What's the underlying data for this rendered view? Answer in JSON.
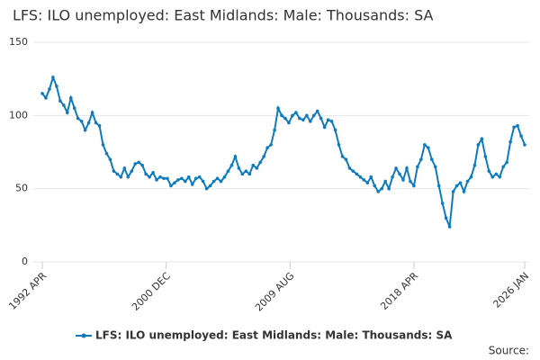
{
  "chart_data": {
    "type": "line",
    "title": "LFS: ILO unemployed: East Midlands: Male: Thousands: SA",
    "source_label": "Source:",
    "x": [
      1992.25,
      1992.5,
      1992.75,
      1993,
      1993.25,
      1993.5,
      1993.75,
      1994,
      1994.25,
      1994.5,
      1994.75,
      1995,
      1995.25,
      1995.5,
      1995.75,
      1996,
      1996.25,
      1996.5,
      1996.75,
      1997,
      1997.25,
      1997.5,
      1997.75,
      1998,
      1998.25,
      1998.5,
      1998.75,
      1999,
      1999.25,
      1999.5,
      1999.75,
      2000,
      2000.25,
      2000.5,
      2000.75,
      2001,
      2001.25,
      2001.5,
      2001.75,
      2002,
      2002.25,
      2002.5,
      2002.75,
      2003,
      2003.25,
      2003.5,
      2003.75,
      2004,
      2004.25,
      2004.5,
      2004.75,
      2005,
      2005.25,
      2005.5,
      2005.75,
      2006,
      2006.25,
      2006.5,
      2006.75,
      2007,
      2007.25,
      2007.5,
      2007.75,
      2008,
      2008.25,
      2008.5,
      2008.75,
      2009,
      2009.25,
      2009.5,
      2009.75,
      2010,
      2010.25,
      2010.5,
      2010.75,
      2011,
      2011.25,
      2011.5,
      2011.75,
      2012,
      2012.25,
      2012.5,
      2012.75,
      2013,
      2013.25,
      2013.5,
      2013.75,
      2014,
      2014.25,
      2014.5,
      2014.75,
      2015,
      2015.25,
      2015.5,
      2015.75,
      2016,
      2016.25,
      2016.5,
      2016.75,
      2017,
      2017.25,
      2017.5,
      2017.75,
      2018,
      2018.25,
      2018.5,
      2018.75,
      2019,
      2019.25,
      2019.5,
      2019.75,
      2020,
      2020.25,
      2020.5,
      2020.75,
      2021,
      2021.25,
      2021.5,
      2021.75,
      2022,
      2022.25,
      2022.5,
      2022.75,
      2023,
      2023.25,
      2023.5,
      2023.75,
      2024,
      2024.25,
      2024.5,
      2024.75,
      2025,
      2025.25,
      2025.5,
      2025.75,
      2026
    ],
    "series": [
      {
        "name": "LFS: ILO unemployed: East Midlands: Male: Thousands: SA",
        "color": "#0f7bbf",
        "values": [
          115,
          112,
          118,
          126,
          120,
          110,
          107,
          102,
          112,
          105,
          98,
          96,
          90,
          95,
          102,
          95,
          93,
          80,
          74,
          70,
          62,
          60,
          58,
          64,
          58,
          62,
          67,
          68,
          66,
          60,
          58,
          61,
          56,
          58,
          57,
          57,
          52,
          54,
          56,
          57,
          55,
          58,
          53,
          57,
          58,
          55,
          50,
          52,
          55,
          57,
          55,
          58,
          62,
          66,
          72,
          64,
          60,
          62,
          60,
          66,
          64,
          68,
          72,
          78,
          80,
          90,
          105,
          100,
          98,
          95,
          100,
          102,
          98,
          97,
          100,
          96,
          100,
          103,
          98,
          92,
          97,
          96,
          90,
          80,
          72,
          70,
          64,
          62,
          60,
          58,
          56,
          54,
          58,
          52,
          48,
          50,
          55,
          50,
          58,
          64,
          60,
          56,
          64,
          55,
          52,
          65,
          70,
          80,
          78,
          70,
          65,
          52,
          40,
          30,
          24,
          48,
          52,
          54,
          48,
          55,
          58,
          66,
          80,
          84,
          72,
          62,
          58,
          60,
          58,
          65,
          68,
          82,
          92,
          93,
          86,
          80
        ]
      }
    ],
    "xlim": [
      1992.25,
      2026
    ],
    "xticks": [
      {
        "value": 1992.25,
        "label": "1992 APR"
      },
      {
        "value": 2000.9167,
        "label": "2000 DEC"
      },
      {
        "value": 2009.5833,
        "label": "2009 AUG"
      },
      {
        "value": 2018.25,
        "label": "2018 APR"
      },
      {
        "value": 2026,
        "label": "2026 JAN"
      }
    ],
    "ylim": [
      0,
      150
    ],
    "yticks": [
      0,
      50,
      100,
      150
    ],
    "grid": true,
    "legend": "bottom"
  }
}
